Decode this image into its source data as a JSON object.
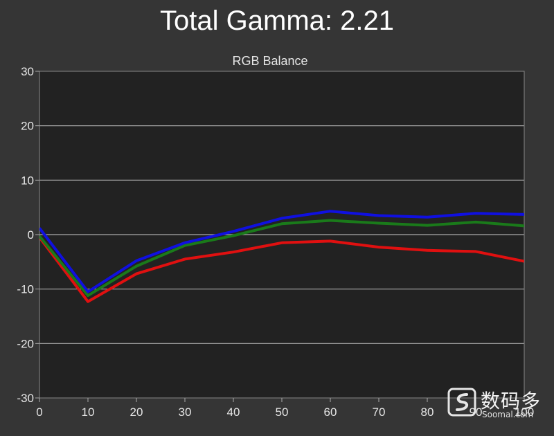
{
  "chart_data": {
    "type": "line",
    "title": "Total Gamma: 2.21",
    "subtitle": "RGB Balance",
    "x": [
      0,
      10,
      20,
      30,
      40,
      50,
      60,
      70,
      80,
      90,
      100
    ],
    "xlim": [
      0,
      100
    ],
    "ylim": [
      -30,
      30
    ],
    "xticks": [
      0,
      10,
      20,
      30,
      40,
      50,
      60,
      70,
      80,
      90,
      100
    ],
    "yticks": [
      30,
      20,
      10,
      0,
      -10,
      -20,
      -30
    ],
    "grid": true,
    "series": [
      {
        "color": "#e01010",
        "values": [
          -0.5,
          -12.3,
          -7.2,
          -4.5,
          -3.2,
          -1.5,
          -1.2,
          -2.3,
          -2.9,
          -3.1,
          -4.9
        ]
      },
      {
        "color": "#1a7a1a",
        "values": [
          -0.3,
          -11.2,
          -5.8,
          -2.0,
          -0.2,
          2.0,
          2.6,
          2.1,
          1.7,
          2.3,
          1.6
        ]
      },
      {
        "color": "#1010e0",
        "values": [
          1.2,
          -10.5,
          -4.8,
          -1.5,
          0.6,
          3.0,
          4.3,
          3.5,
          3.2,
          3.9,
          3.7
        ]
      }
    ]
  },
  "watermark": {
    "text": "数码多",
    "sub": "Soomal.com"
  }
}
